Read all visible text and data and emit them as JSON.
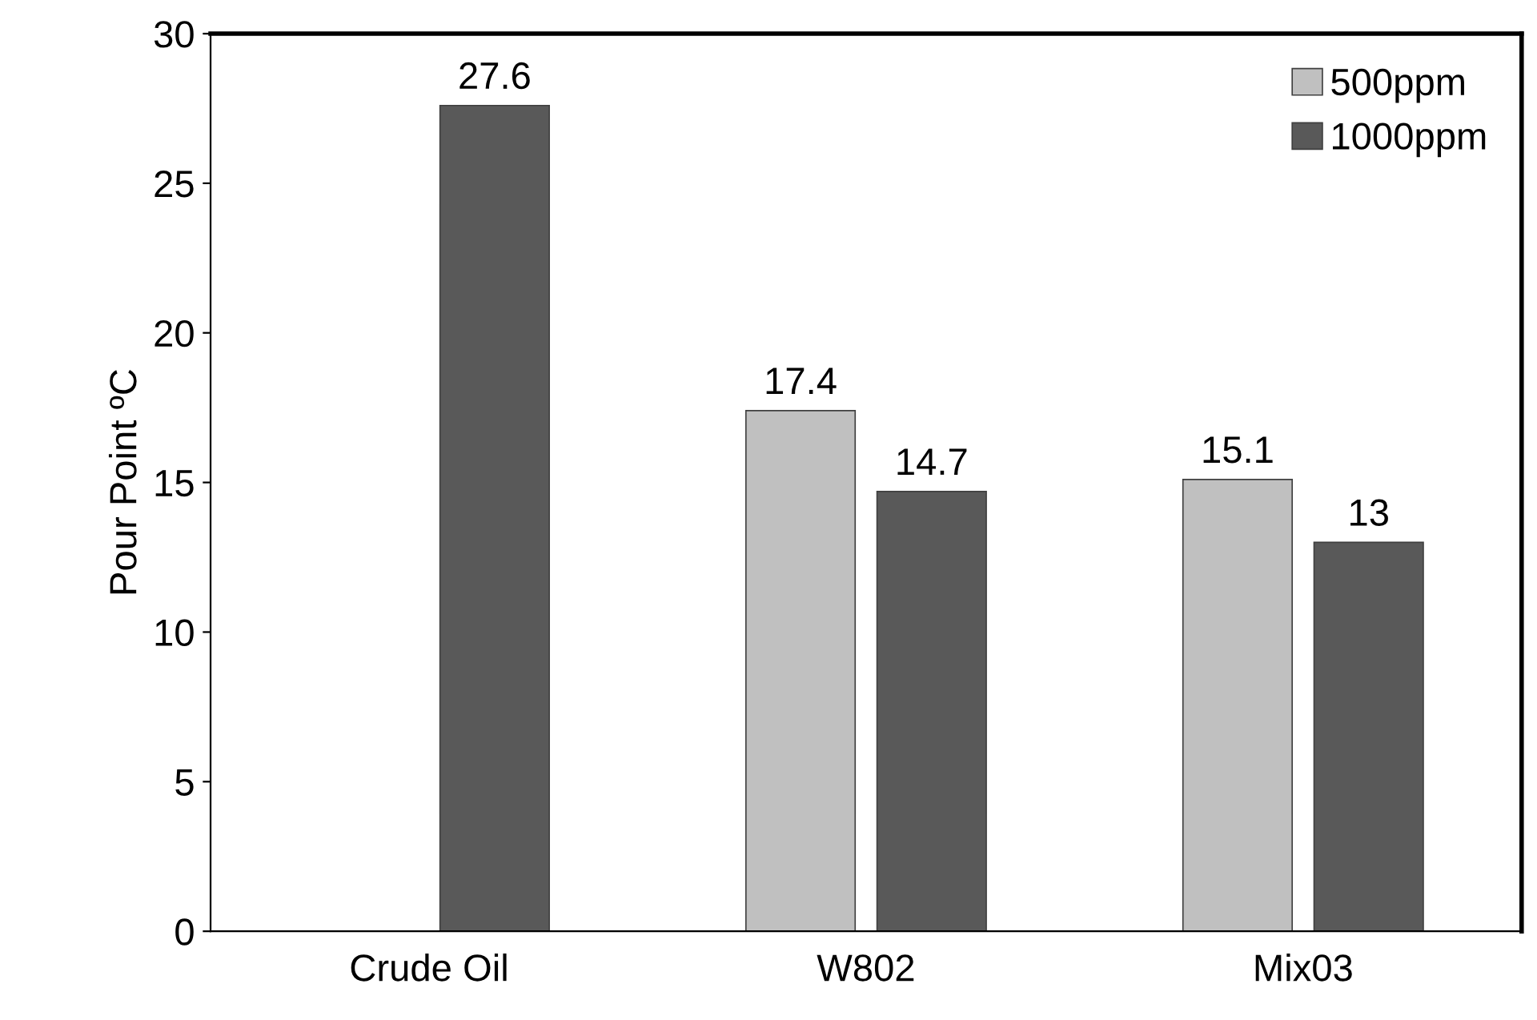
{
  "chart_data": {
    "type": "bar",
    "ylabel": "Pour Point ºC",
    "categories": [
      "Crude Oil",
      "W802",
      "Mix03"
    ],
    "series": [
      {
        "name": "500ppm",
        "color": "#c0c0c0",
        "values": [
          null,
          17.4,
          15.1
        ]
      },
      {
        "name": "1000ppm",
        "color": "#595959",
        "values": [
          27.6,
          14.7,
          13
        ]
      }
    ],
    "ylim": [
      0,
      30
    ],
    "yticks": [
      0,
      5,
      10,
      15,
      20,
      25,
      30
    ],
    "data_labels": true,
    "legend": "top right",
    "grid": false
  }
}
